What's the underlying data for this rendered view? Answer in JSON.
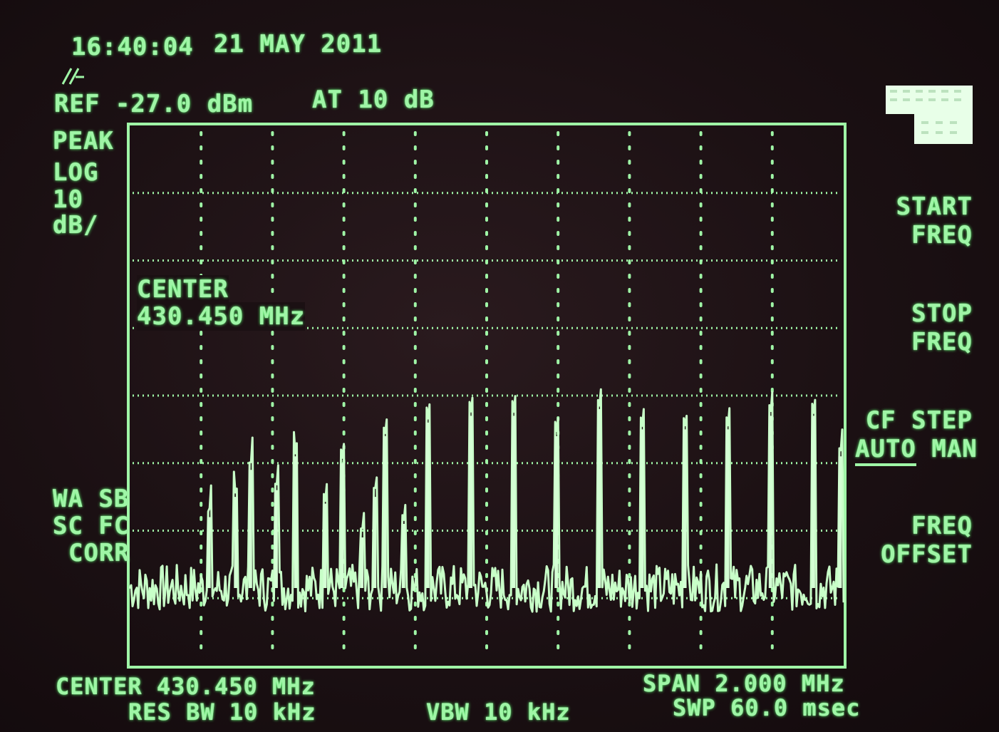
{
  "header": {
    "time": "16:40:04",
    "date": "21 MAY 2011",
    "ref_level": "REF -27.0 dBm",
    "attenuation": "AT 10 dB"
  },
  "left_labels": {
    "detector": "PEAK",
    "scale_type": "LOG",
    "scale_value": "10",
    "scale_unit": "dB/",
    "corr_line1": "WA SB",
    "corr_line2": "SC FC",
    "corr_line3": "CORR"
  },
  "marker_annotation": {
    "label": "CENTER",
    "value": "430.450 MHz"
  },
  "footer": {
    "center": "CENTER 430.450 MHz",
    "res_bw": "RES BW 10 kHz",
    "vbw": "VBW 10 kHz",
    "span": "SPAN 2.000 MHz",
    "sweep": "SWP 60.0 msec"
  },
  "softkeys": [
    {
      "line1": "START",
      "line2": "FREQ"
    },
    {
      "line1": "STOP",
      "line2": "FREQ"
    },
    {
      "line1": "CF STEP",
      "line2_auto": "AUTO",
      "line2_man": " MAN"
    },
    {
      "line1": "FREQ",
      "line2": "OFFSET"
    }
  ],
  "colors": {
    "phosphor": "#9ff5a6",
    "background": "#1b1013"
  },
  "chart_data": {
    "type": "line",
    "title": "",
    "xlabel": "",
    "ylabel": "",
    "x_center_mhz": 430.45,
    "x_span_mhz": 2.0,
    "xlim": [
      429.45,
      431.45
    ],
    "ref_level_dbm": -27.0,
    "scale_db_per_div": 10,
    "ylim": [
      -107.0,
      -27.0
    ],
    "grid": true,
    "noise_floor_dbm": -95.5,
    "peaks": [
      {
        "x": 429.672,
        "y": -85.0
      },
      {
        "x": 429.747,
        "y": -82.0
      },
      {
        "x": 429.788,
        "y": -78.0
      },
      {
        "x": 429.86,
        "y": -81.0
      },
      {
        "x": 429.915,
        "y": -76.0
      },
      {
        "x": 429.997,
        "y": -83.0
      },
      {
        "x": 430.045,
        "y": -77.0
      },
      {
        "x": 430.1,
        "y": -88.0
      },
      {
        "x": 430.136,
        "y": -82.0
      },
      {
        "x": 430.165,
        "y": -73.0
      },
      {
        "x": 430.217,
        "y": -86.0
      },
      {
        "x": 430.285,
        "y": -71.0
      },
      {
        "x": 430.405,
        "y": -70.0
      },
      {
        "x": 430.525,
        "y": -70.0
      },
      {
        "x": 430.645,
        "y": -73.0
      },
      {
        "x": 430.765,
        "y": -69.0
      },
      {
        "x": 430.885,
        "y": -72.0
      },
      {
        "x": 431.005,
        "y": -72.0
      },
      {
        "x": 431.125,
        "y": -72.0
      },
      {
        "x": 431.245,
        "y": -70.0
      },
      {
        "x": 431.365,
        "y": -70.0
      },
      {
        "x": 431.44,
        "y": -76.0
      }
    ]
  }
}
